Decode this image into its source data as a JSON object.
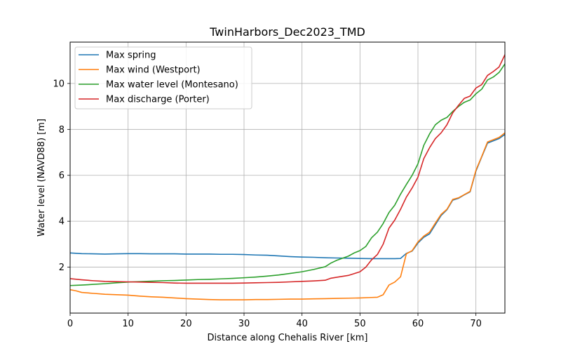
{
  "chart_data": {
    "type": "line",
    "title": "TwinHarbors_Dec2023_TMD",
    "xlabel": "Distance along Chehalis River [km]",
    "ylabel": "Water level (NAVD88) [m]",
    "xlim": [
      0,
      75
    ],
    "ylim": [
      0,
      11.8
    ],
    "x_ticks": [
      0,
      10,
      20,
      30,
      40,
      50,
      60,
      70
    ],
    "y_ticks": [
      2,
      4,
      6,
      8,
      10
    ],
    "x_tick_labels": [
      "0",
      "10",
      "20",
      "30",
      "40",
      "50",
      "60",
      "70"
    ],
    "y_tick_labels": [
      "2",
      "4",
      "6",
      "8",
      "10"
    ],
    "grid": true,
    "legend_position": "top-left",
    "series": [
      {
        "name": "Max spring",
        "color": "#1f77b4",
        "points": [
          [
            0,
            2.62
          ],
          [
            2,
            2.59
          ],
          [
            4,
            2.58
          ],
          [
            6,
            2.57
          ],
          [
            8,
            2.58
          ],
          [
            10,
            2.59
          ],
          [
            12,
            2.59
          ],
          [
            14,
            2.58
          ],
          [
            16,
            2.58
          ],
          [
            18,
            2.58
          ],
          [
            20,
            2.57
          ],
          [
            22,
            2.57
          ],
          [
            24,
            2.57
          ],
          [
            26,
            2.56
          ],
          [
            28,
            2.56
          ],
          [
            30,
            2.55
          ],
          [
            32,
            2.53
          ],
          [
            34,
            2.52
          ],
          [
            36,
            2.49
          ],
          [
            38,
            2.46
          ],
          [
            40,
            2.44
          ],
          [
            42,
            2.43
          ],
          [
            44,
            2.41
          ],
          [
            46,
            2.4
          ],
          [
            48,
            2.39
          ],
          [
            50,
            2.38
          ],
          [
            52,
            2.37
          ],
          [
            54,
            2.37
          ],
          [
            56,
            2.37
          ],
          [
            57,
            2.38
          ],
          [
            58,
            2.6
          ],
          [
            59,
            2.7
          ],
          [
            60,
            3.05
          ],
          [
            61,
            3.3
          ],
          [
            62,
            3.45
          ],
          [
            63,
            3.85
          ],
          [
            64,
            4.25
          ],
          [
            65,
            4.5
          ],
          [
            66,
            4.92
          ],
          [
            67,
            5.0
          ],
          [
            68,
            5.15
          ],
          [
            69,
            5.28
          ],
          [
            70,
            6.18
          ],
          [
            71,
            6.8
          ],
          [
            72,
            7.4
          ],
          [
            73,
            7.5
          ],
          [
            74,
            7.6
          ],
          [
            75,
            7.78
          ]
        ]
      },
      {
        "name": "Max wind (Westport)",
        "color": "#ff7f0e",
        "points": [
          [
            0,
            1.02
          ],
          [
            1,
            0.97
          ],
          [
            2,
            0.9
          ],
          [
            4,
            0.86
          ],
          [
            6,
            0.82
          ],
          [
            8,
            0.8
          ],
          [
            10,
            0.78
          ],
          [
            12,
            0.74
          ],
          [
            14,
            0.71
          ],
          [
            16,
            0.69
          ],
          [
            18,
            0.66
          ],
          [
            20,
            0.63
          ],
          [
            22,
            0.61
          ],
          [
            24,
            0.59
          ],
          [
            26,
            0.58
          ],
          [
            28,
            0.58
          ],
          [
            30,
            0.58
          ],
          [
            32,
            0.59
          ],
          [
            34,
            0.59
          ],
          [
            36,
            0.6
          ],
          [
            38,
            0.61
          ],
          [
            40,
            0.61
          ],
          [
            42,
            0.62
          ],
          [
            44,
            0.63
          ],
          [
            46,
            0.64
          ],
          [
            48,
            0.65
          ],
          [
            50,
            0.66
          ],
          [
            52,
            0.68
          ],
          [
            53,
            0.69
          ],
          [
            54,
            0.8
          ],
          [
            55,
            1.22
          ],
          [
            56,
            1.35
          ],
          [
            57,
            1.58
          ],
          [
            58,
            2.58
          ],
          [
            59,
            2.72
          ],
          [
            60,
            3.1
          ],
          [
            61,
            3.35
          ],
          [
            62,
            3.52
          ],
          [
            63,
            3.92
          ],
          [
            64,
            4.3
          ],
          [
            65,
            4.52
          ],
          [
            66,
            4.95
          ],
          [
            67,
            5.02
          ],
          [
            68,
            5.16
          ],
          [
            69,
            5.3
          ],
          [
            70,
            6.22
          ],
          [
            71,
            6.82
          ],
          [
            72,
            7.45
          ],
          [
            73,
            7.55
          ],
          [
            74,
            7.65
          ],
          [
            75,
            7.85
          ]
        ]
      },
      {
        "name": "Max water level (Montesano)",
        "color": "#2ca02c",
        "points": [
          [
            0,
            1.2
          ],
          [
            2,
            1.22
          ],
          [
            4,
            1.25
          ],
          [
            6,
            1.28
          ],
          [
            8,
            1.32
          ],
          [
            10,
            1.35
          ],
          [
            12,
            1.37
          ],
          [
            14,
            1.39
          ],
          [
            16,
            1.41
          ],
          [
            18,
            1.42
          ],
          [
            20,
            1.44
          ],
          [
            22,
            1.46
          ],
          [
            24,
            1.47
          ],
          [
            26,
            1.49
          ],
          [
            28,
            1.51
          ],
          [
            30,
            1.54
          ],
          [
            32,
            1.57
          ],
          [
            34,
            1.61
          ],
          [
            36,
            1.66
          ],
          [
            38,
            1.73
          ],
          [
            40,
            1.8
          ],
          [
            42,
            1.9
          ],
          [
            44,
            2.02
          ],
          [
            45,
            2.18
          ],
          [
            46,
            2.3
          ],
          [
            48,
            2.48
          ],
          [
            49,
            2.62
          ],
          [
            50,
            2.72
          ],
          [
            51,
            2.9
          ],
          [
            52,
            3.28
          ],
          [
            53,
            3.52
          ],
          [
            54,
            3.9
          ],
          [
            55,
            4.38
          ],
          [
            56,
            4.7
          ],
          [
            57,
            5.18
          ],
          [
            58,
            5.6
          ],
          [
            59,
            6.0
          ],
          [
            60,
            6.5
          ],
          [
            61,
            7.3
          ],
          [
            62,
            7.8
          ],
          [
            63,
            8.2
          ],
          [
            64,
            8.4
          ],
          [
            65,
            8.52
          ],
          [
            66,
            8.78
          ],
          [
            67,
            9.0
          ],
          [
            68,
            9.18
          ],
          [
            69,
            9.28
          ],
          [
            70,
            9.55
          ],
          [
            71,
            9.75
          ],
          [
            72,
            10.15
          ],
          [
            73,
            10.28
          ],
          [
            74,
            10.48
          ],
          [
            75,
            10.85
          ]
        ]
      },
      {
        "name": "Max discharge (Porter)",
        "color": "#d62728",
        "points": [
          [
            0,
            1.5
          ],
          [
            2,
            1.45
          ],
          [
            4,
            1.41
          ],
          [
            6,
            1.38
          ],
          [
            8,
            1.37
          ],
          [
            10,
            1.36
          ],
          [
            12,
            1.35
          ],
          [
            14,
            1.34
          ],
          [
            16,
            1.33
          ],
          [
            18,
            1.31
          ],
          [
            20,
            1.3
          ],
          [
            22,
            1.3
          ],
          [
            24,
            1.3
          ],
          [
            26,
            1.3
          ],
          [
            28,
            1.3
          ],
          [
            30,
            1.31
          ],
          [
            32,
            1.32
          ],
          [
            34,
            1.33
          ],
          [
            36,
            1.34
          ],
          [
            38,
            1.36
          ],
          [
            40,
            1.38
          ],
          [
            42,
            1.4
          ],
          [
            44,
            1.43
          ],
          [
            45,
            1.52
          ],
          [
            46,
            1.56
          ],
          [
            48,
            1.64
          ],
          [
            49,
            1.72
          ],
          [
            50,
            1.8
          ],
          [
            51,
            2.0
          ],
          [
            52,
            2.32
          ],
          [
            53,
            2.55
          ],
          [
            54,
            3.0
          ],
          [
            55,
            3.7
          ],
          [
            56,
            4.05
          ],
          [
            57,
            4.52
          ],
          [
            58,
            5.05
          ],
          [
            59,
            5.45
          ],
          [
            60,
            5.92
          ],
          [
            61,
            6.72
          ],
          [
            62,
            7.2
          ],
          [
            63,
            7.6
          ],
          [
            64,
            7.85
          ],
          [
            65,
            8.2
          ],
          [
            66,
            8.72
          ],
          [
            67,
            9.05
          ],
          [
            68,
            9.35
          ],
          [
            69,
            9.45
          ],
          [
            70,
            9.8
          ],
          [
            71,
            9.95
          ],
          [
            72,
            10.35
          ],
          [
            73,
            10.52
          ],
          [
            74,
            10.72
          ],
          [
            75,
            11.25
          ]
        ]
      }
    ]
  }
}
